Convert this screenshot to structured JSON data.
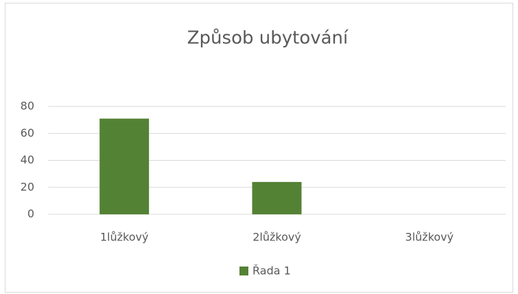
{
  "chart_data": {
    "type": "bar",
    "title": "Způsob ubytování",
    "categories": [
      "1lůžkový",
      "2lůžkový",
      "3lůžkový"
    ],
    "series": [
      {
        "name": "Řada 1",
        "color": "#548235",
        "values": [
          71,
          24,
          0
        ]
      }
    ],
    "ylim": [
      0,
      80
    ],
    "yticks": [
      0,
      20,
      40,
      60,
      80
    ],
    "grid": true,
    "legend": "bottom"
  }
}
